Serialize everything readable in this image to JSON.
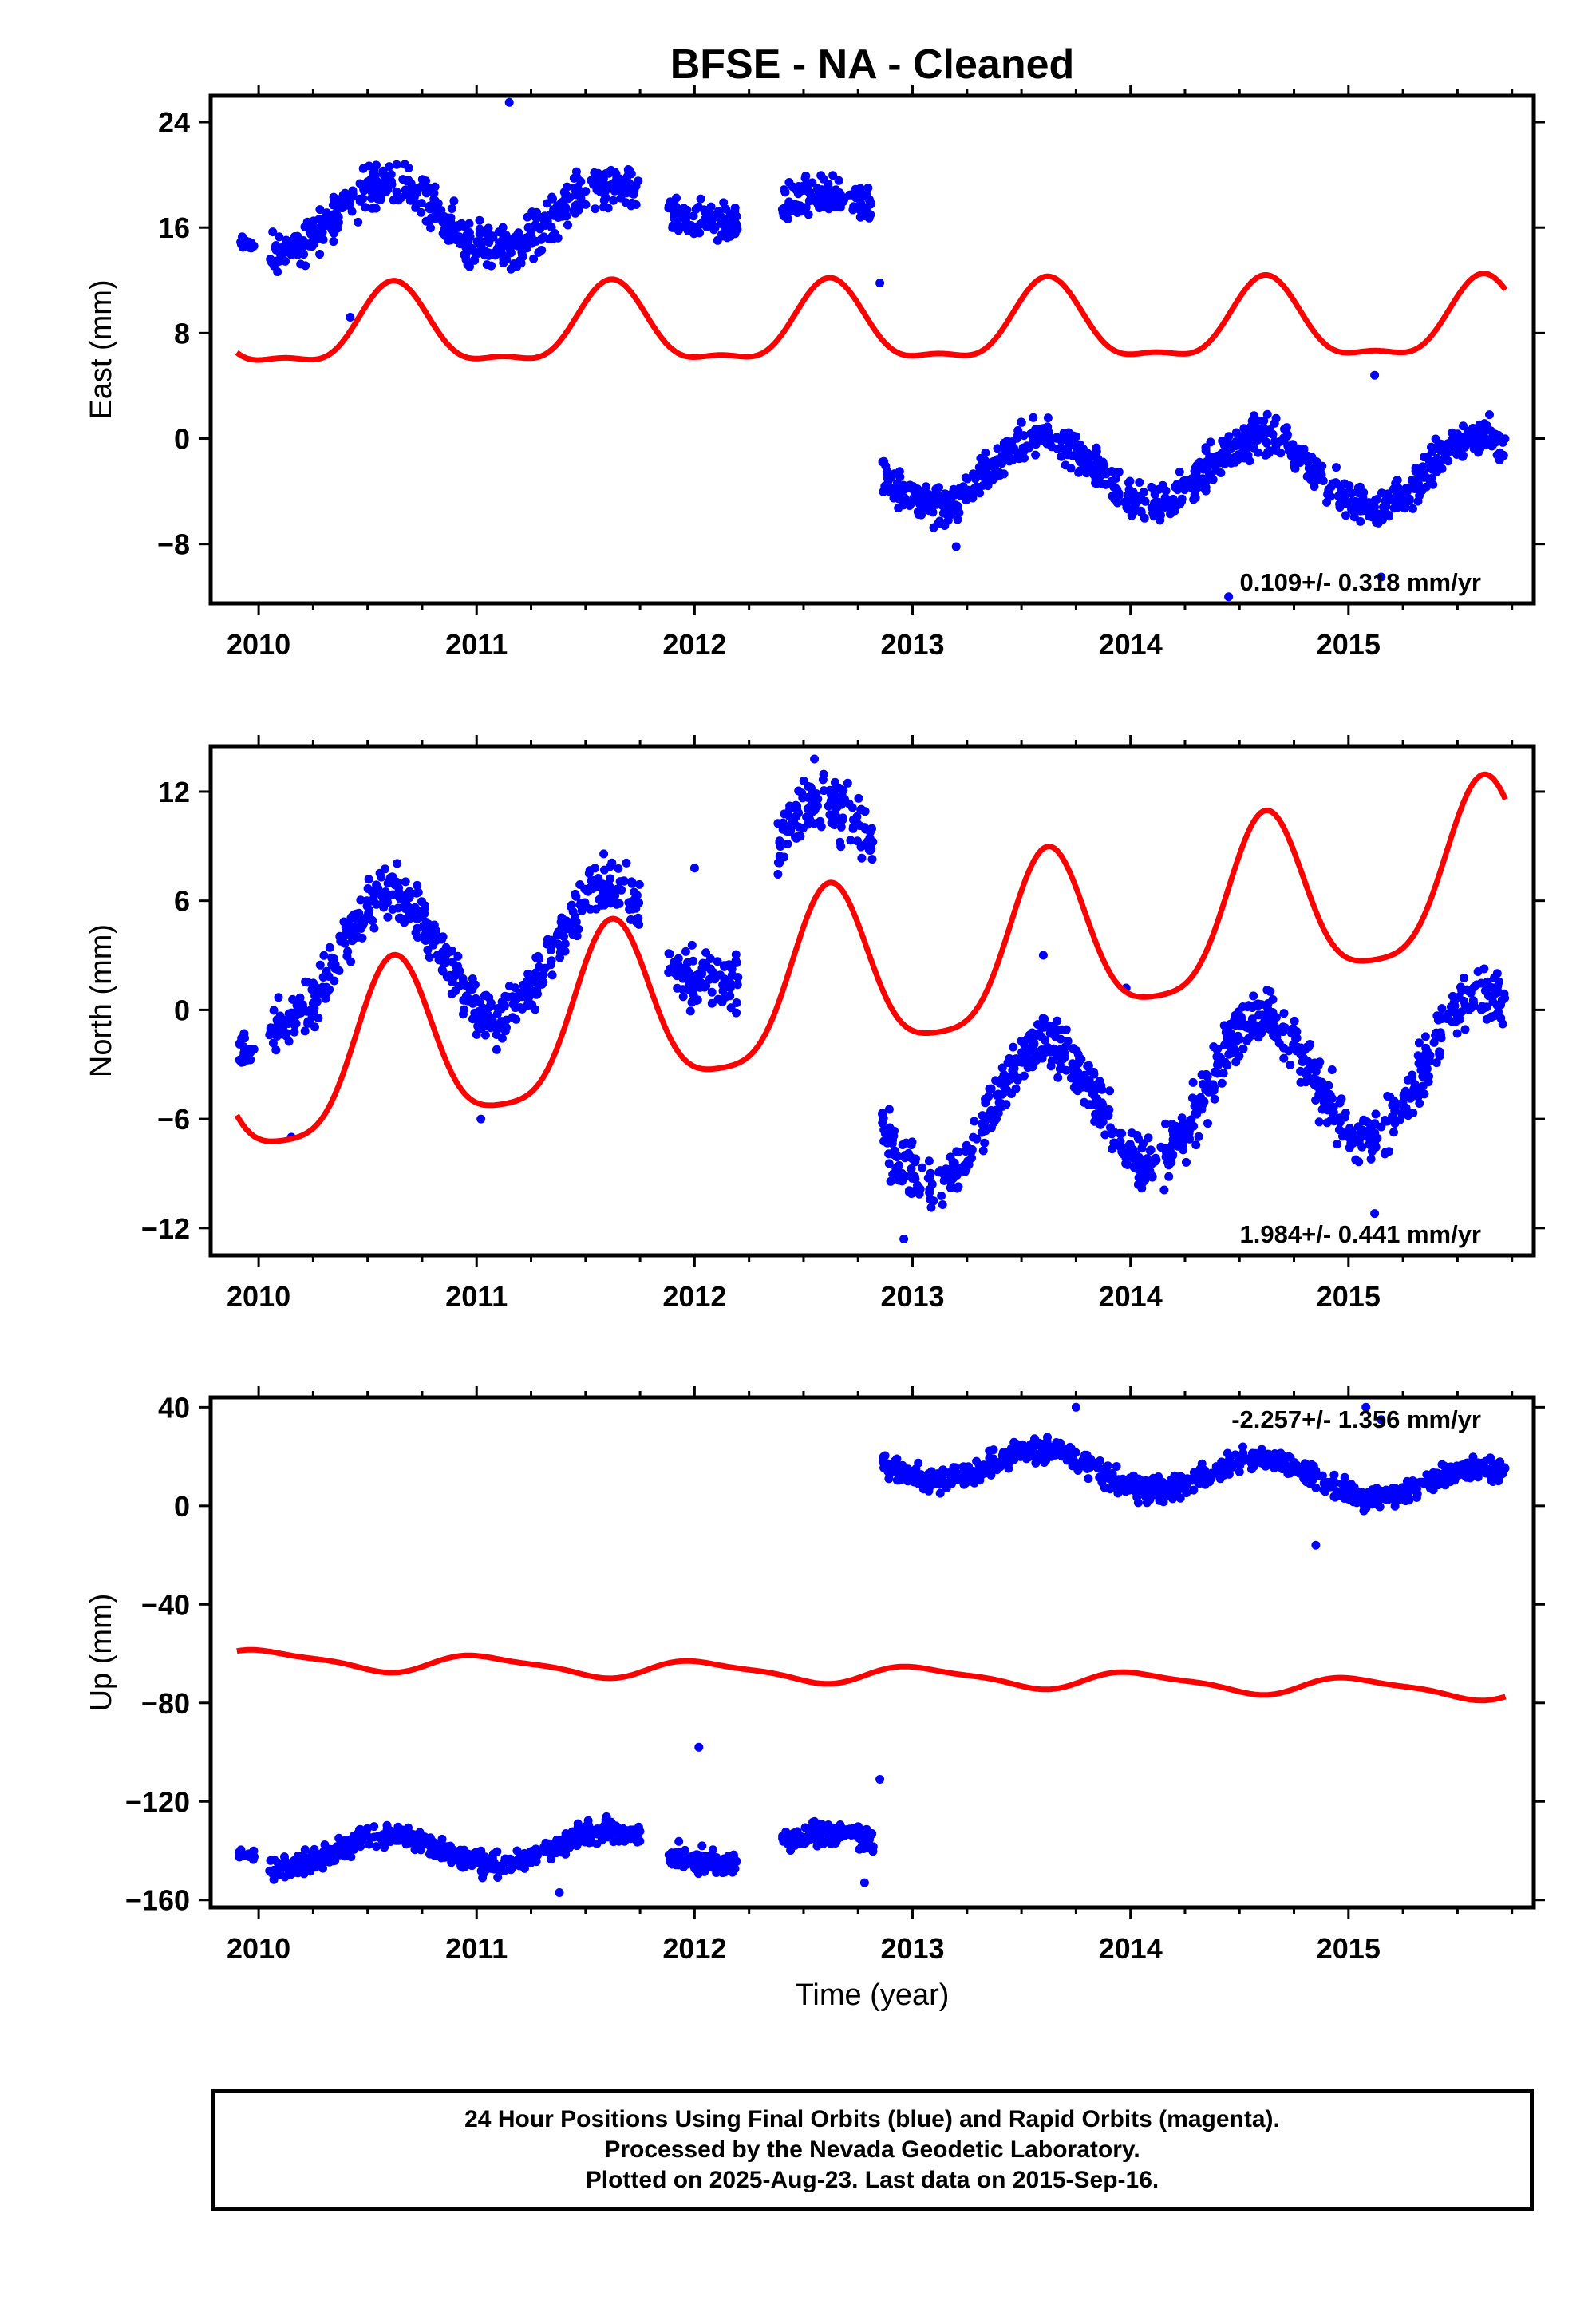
{
  "title": "BFSE  - NA - Cleaned",
  "xlabel": "Time (year)",
  "footer": {
    "line1": "24 Hour Positions Using Final Orbits (blue) and Rapid Orbits (magenta).",
    "line2": "Processed by the Nevada Geodetic Laboratory.",
    "line3": "Plotted on 2025-Aug-23. Last data on 2015-Sep-16."
  },
  "colors": {
    "data": "#0000ff",
    "model": "#ff0000",
    "frame": "#000000"
  },
  "chart_data": [
    {
      "type": "scatter",
      "ylabel": "East (mm)",
      "rate": "0.109+/- 0.318 mm/yr",
      "rate_position": "bottom-right",
      "xlim": [
        2009.78,
        2015.85
      ],
      "ylim": [
        -12.5,
        26
      ],
      "yticks": [
        -8,
        0,
        8,
        16,
        24
      ],
      "xticks": [
        2010,
        2011,
        2012,
        2013,
        2014,
        2015
      ],
      "grid": false,
      "series": [
        {
          "kind": "points",
          "segments": [
            {
              "x0": 2009.91,
              "x1": 2009.98,
              "y0": 15.2,
              "y1": 15.2,
              "amp": 0.8
            },
            {
              "x0": 2010.05,
              "x1": 2011.75,
              "y0": 16.8,
              "y1": 16.8,
              "amp": 2.5,
              "noise": 1.4
            },
            {
              "x0": 2011.88,
              "x1": 2012.2,
              "y0": 17.3,
              "y1": 17.3,
              "amp": 1.0,
              "noise": 1.2
            },
            {
              "x0": 2012.4,
              "x1": 2012.82,
              "y0": 17.0,
              "y1": 17.0,
              "amp": 1.5,
              "noise": 1.3
            },
            {
              "x0": 2012.86,
              "x1": 2015.72,
              "y0": -2.5,
              "y1": -2.5,
              "amp": 2.6,
              "noise": 1.3
            }
          ],
          "outliers": [
            [
              2011.15,
              25.5
            ],
            [
              2012.85,
              11.8
            ],
            [
              2010.42,
              9.2
            ],
            [
              2014.45,
              -12.0
            ],
            [
              2015.12,
              4.8
            ],
            [
              2015.15,
              -10.5
            ],
            [
              2013.2,
              -8.2
            ]
          ]
        },
        {
          "kind": "model",
          "x0": 2009.9,
          "x1": 2015.72,
          "offset0": 8.0,
          "trend": 0.109,
          "annual_amp": 2.9,
          "annual_phase": 2010.62,
          "semi_amp": 1.0,
          "semi_phase": 2010.12
        }
      ]
    },
    {
      "type": "scatter",
      "ylabel": "North (mm)",
      "rate": "1.984+/- 0.441 mm/yr",
      "rate_position": "bottom-right",
      "xlim": [
        2009.78,
        2015.85
      ],
      "ylim": [
        -13.5,
        14.5
      ],
      "yticks": [
        -12,
        -6,
        0,
        6,
        12
      ],
      "xticks": [
        2010,
        2011,
        2012,
        2013,
        2014,
        2015
      ],
      "grid": false,
      "series": [
        {
          "kind": "points",
          "segments": [
            {
              "x0": 2009.91,
              "x1": 2009.98,
              "y0": -1.5,
              "y1": -1.5,
              "amp": 1.5
            },
            {
              "x0": 2010.05,
              "x1": 2011.75,
              "y0": 2.5,
              "y1": 3.5,
              "amp": 3.5,
              "noise": 1.2
            },
            {
              "x0": 2011.88,
              "x1": 2012.2,
              "y0": 2.5,
              "y1": 2.5,
              "amp": 1.0,
              "noise": 1.5
            },
            {
              "x0": 2012.38,
              "x1": 2012.82,
              "y0": 8.5,
              "y1": 8.5,
              "amp": 3.0,
              "noise": 1.5
            },
            {
              "x0": 2012.86,
              "x1": 2015.72,
              "y0": -6.5,
              "y1": -2.5,
              "amp": 3.6,
              "noise": 1.3
            }
          ],
          "outliers": [
            [
              2012.55,
              13.8
            ],
            [
              2013.98,
              1.2
            ],
            [
              2012.0,
              7.8
            ],
            [
              2012.96,
              -12.6
            ],
            [
              2015.12,
              -11.2
            ],
            [
              2010.15,
              -7.0
            ],
            [
              2011.02,
              -6.0
            ],
            [
              2013.6,
              3.0
            ]
          ]
        },
        {
          "kind": "model",
          "x0": 2009.9,
          "x1": 2015.72,
          "offset0": -4.0,
          "trend": 1.984,
          "annual_amp": 4.6,
          "annual_phase": 2010.62,
          "semi_amp": 1.0,
          "semi_phase": 2010.12
        }
      ]
    },
    {
      "type": "scatter",
      "ylabel": "Up (mm)",
      "rate": "-2.257+/- 1.356 mm/yr",
      "rate_position": "top-right",
      "xlim": [
        2009.78,
        2015.85
      ],
      "ylim": [
        -163,
        44
      ],
      "yticks": [
        -160,
        -120,
        -80,
        -40,
        0,
        40
      ],
      "xticks": [
        2010,
        2011,
        2012,
        2013,
        2014,
        2015
      ],
      "grid": false,
      "series": [
        {
          "kind": "points",
          "segments": [
            {
              "x0": 2009.91,
              "x1": 2009.98,
              "y0": -140,
              "y1": -140,
              "amp": 3
            },
            {
              "x0": 2010.05,
              "x1": 2011.75,
              "y0": -141,
              "y1": -138,
              "amp": 6,
              "noise": 4
            },
            {
              "x0": 2011.88,
              "x1": 2012.2,
              "y0": -141,
              "y1": -141,
              "amp": 4,
              "noise": 4
            },
            {
              "x0": 2012.4,
              "x1": 2012.82,
              "y0": -137,
              "y1": -137,
              "amp": 4,
              "noise": 4
            },
            {
              "x0": 2012.86,
              "x1": 2015.72,
              "y0": 18,
              "y1": 8,
              "amp": 7,
              "noise": 4
            }
          ],
          "outliers": [
            [
              2012.02,
              -98
            ],
            [
              2012.85,
              -111
            ],
            [
              2013.75,
              40
            ],
            [
              2015.08,
              40
            ],
            [
              2014.85,
              -16
            ],
            [
              2012.78,
              -153
            ],
            [
              2011.38,
              -157
            ],
            [
              2015.15,
              35
            ]
          ]
        },
        {
          "kind": "model",
          "x0": 2009.9,
          "x1": 2015.72,
          "offset0": -62.0,
          "trend": -2.257,
          "annual_amp": 3.5,
          "annual_phase": 2010.05,
          "semi_amp": 1.0,
          "semi_phase": 2009.9
        }
      ]
    }
  ]
}
